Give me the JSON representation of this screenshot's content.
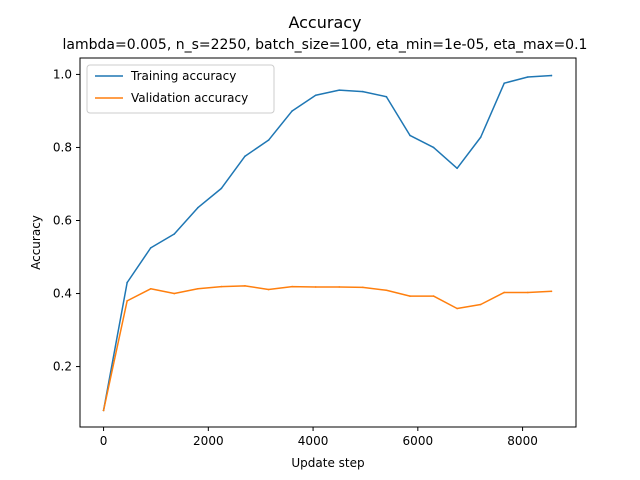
{
  "chart_data": {
    "type": "line",
    "title": "Accuracy",
    "subtitle": "lambda=0.005, n_s=2250, batch_size=100, eta_min=1e-05, eta_max=0.1",
    "xlabel": "Update step",
    "ylabel": "Accuracy",
    "xlim": [
      -450,
      9020
    ],
    "ylim": [
      0.0345,
      1.045
    ],
    "xticks": [
      0,
      2000,
      4000,
      6000,
      8000
    ],
    "yticks": [
      0.2,
      0.4,
      0.6,
      0.8,
      1.0
    ],
    "xtick_labels": [
      "0",
      "2000",
      "4000",
      "6000",
      "8000"
    ],
    "ytick_labels": [
      "0.2",
      "0.4",
      "0.6",
      "0.8",
      "1.0"
    ],
    "grid": false,
    "legend_position": "top-left",
    "x": [
      0,
      450,
      900,
      1350,
      1800,
      2250,
      2700,
      3150,
      3600,
      4050,
      4500,
      4950,
      5400,
      5850,
      6300,
      6750,
      7200,
      7650,
      8100,
      8550
    ],
    "series": [
      {
        "name": "Training accuracy",
        "color": "#1f77b4",
        "values": [
          0.08,
          0.43,
          0.525,
          0.563,
          0.635,
          0.688,
          0.776,
          0.82,
          0.9,
          0.943,
          0.957,
          0.953,
          0.939,
          0.833,
          0.8,
          0.743,
          0.828,
          0.976,
          0.993,
          0.997
        ]
      },
      {
        "name": "Validation accuracy",
        "color": "#ff7f0e",
        "values": [
          0.08,
          0.38,
          0.413,
          0.4,
          0.413,
          0.419,
          0.421,
          0.411,
          0.419,
          0.418,
          0.418,
          0.417,
          0.409,
          0.393,
          0.393,
          0.359,
          0.37,
          0.403,
          0.403,
          0.406
        ]
      }
    ]
  }
}
